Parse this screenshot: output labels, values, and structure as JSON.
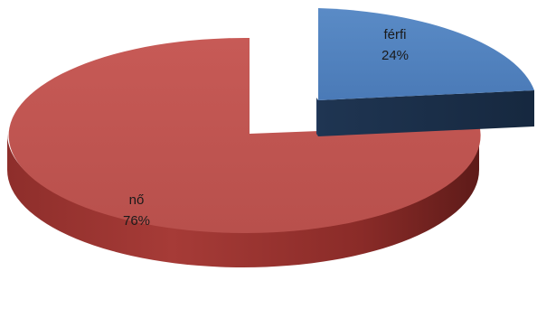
{
  "chart_data": {
    "type": "pie",
    "style": "3d-exploded",
    "title": "",
    "slices": [
      {
        "label": "férfi",
        "value": 24,
        "value_label": "24%",
        "color": "#4F81BD"
      },
      {
        "label": "nő",
        "value": 76,
        "value_label": "76%",
        "color": "#C0504D"
      }
    ],
    "legend": "none"
  }
}
